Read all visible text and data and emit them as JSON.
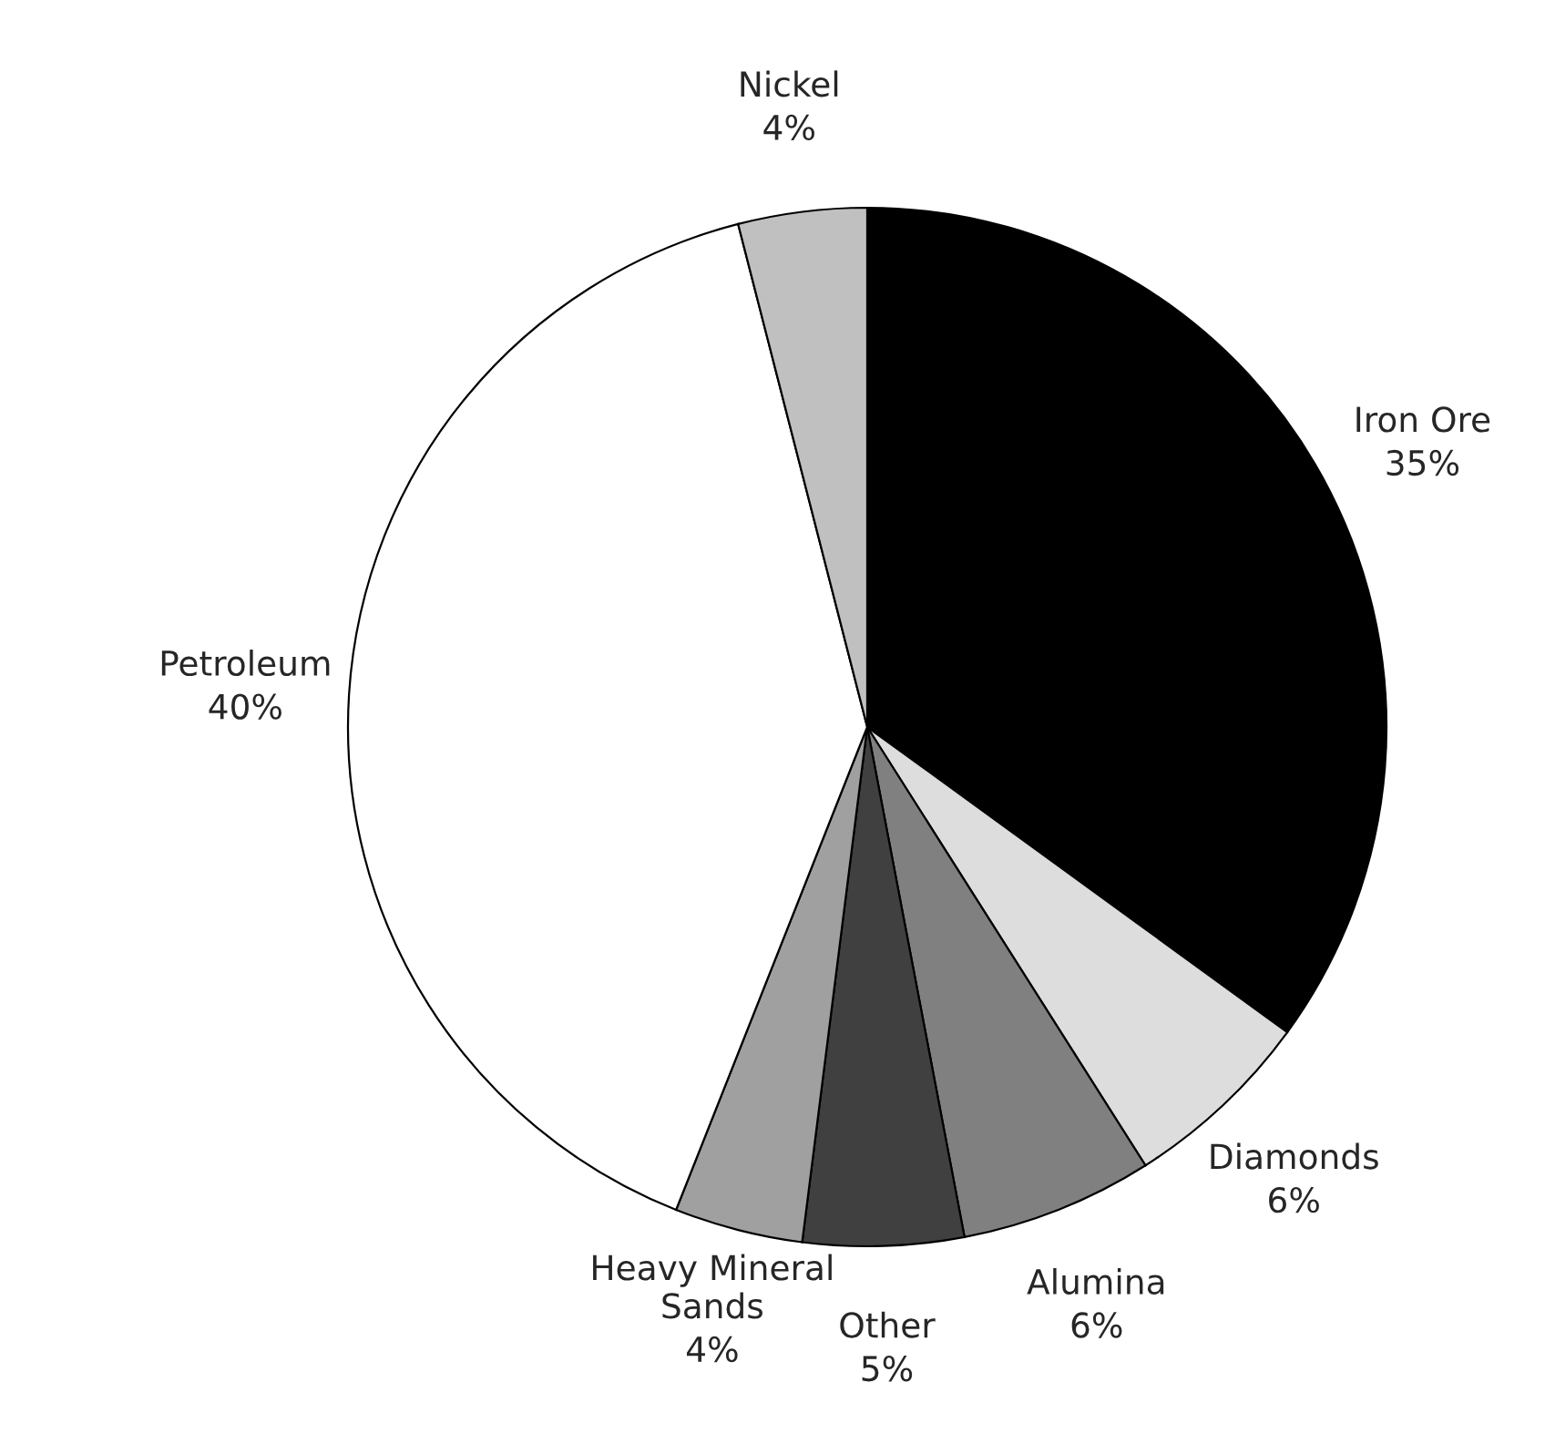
{
  "chart_data": {
    "type": "pie",
    "categories": [
      "Iron Ore",
      "Diamonds",
      "Alumina",
      "Other",
      "Heavy Mineral\nSands",
      "Petroleum",
      "Nickel"
    ],
    "values": [
      35,
      6,
      6,
      5,
      4,
      40,
      4
    ],
    "colors": [
      "#000000",
      "#dddddd",
      "#808080",
      "#404040",
      "#a0a0a0",
      "#ffffff",
      "#c0c0c0"
    ],
    "value_labels": [
      "35%",
      "6%",
      "6%",
      "5%",
      "4%",
      "40%",
      "4%"
    ],
    "legend": false
  }
}
